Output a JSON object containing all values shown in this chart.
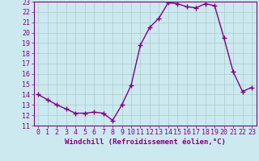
{
  "x": [
    0,
    1,
    2,
    3,
    4,
    5,
    6,
    7,
    8,
    9,
    10,
    11,
    12,
    13,
    14,
    15,
    16,
    17,
    18,
    19,
    20,
    21,
    22,
    23
  ],
  "y": [
    14.0,
    13.5,
    13.0,
    12.6,
    12.2,
    12.2,
    12.3,
    12.2,
    11.5,
    13.0,
    14.9,
    18.8,
    20.5,
    21.4,
    22.9,
    22.8,
    22.5,
    22.4,
    22.8,
    22.6,
    19.5,
    16.2,
    14.3,
    14.7
  ],
  "line_color": "#800080",
  "marker": "+",
  "marker_size": 4,
  "xlabel": "Windchill (Refroidissement éolien,°C)",
  "xlabel_fontsize": 6.5,
  "bg_color": "#cce9f0",
  "ylim": [
    11,
    23
  ],
  "yticks": [
    11,
    12,
    13,
    14,
    15,
    16,
    17,
    18,
    19,
    20,
    21,
    22,
    23
  ],
  "xticks": [
    0,
    1,
    2,
    3,
    4,
    5,
    6,
    7,
    8,
    9,
    10,
    11,
    12,
    13,
    14,
    15,
    16,
    17,
    18,
    19,
    20,
    21,
    22,
    23
  ],
  "tick_fontsize": 6,
  "grid_color": "#aacccc",
  "line_width": 1.0
}
